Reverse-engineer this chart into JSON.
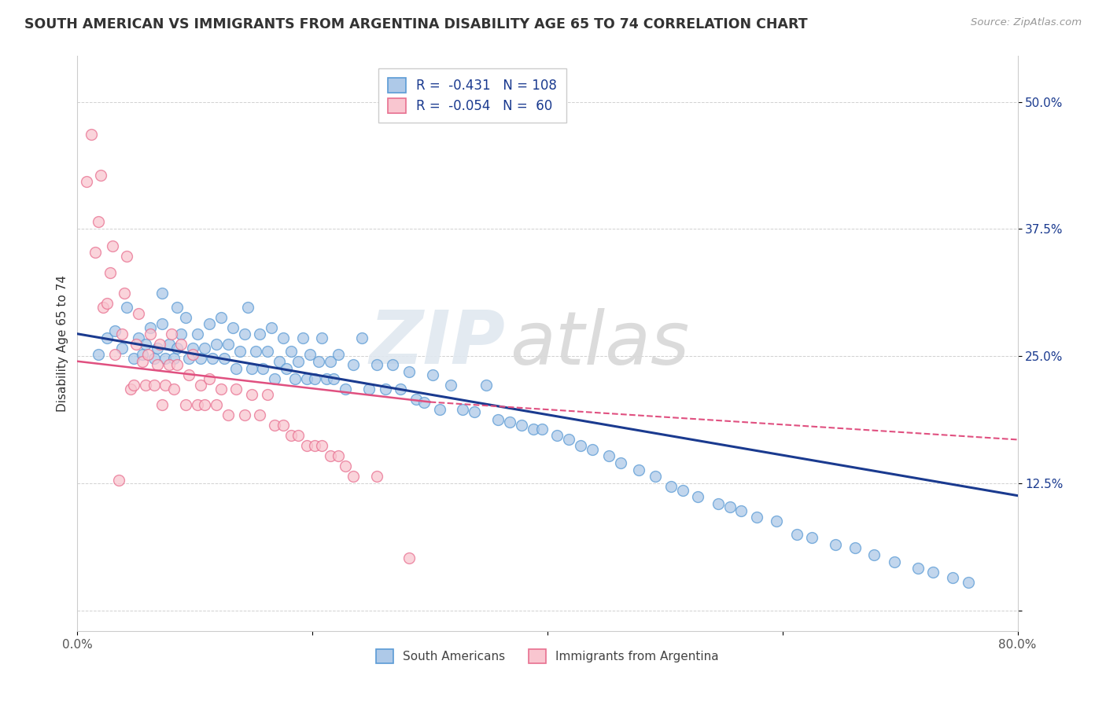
{
  "title": "SOUTH AMERICAN VS IMMIGRANTS FROM ARGENTINA DISABILITY AGE 65 TO 74 CORRELATION CHART",
  "source_text": "Source: ZipAtlas.com",
  "ylabel": "Disability Age 65 to 74",
  "xlim": [
    0.0,
    0.8
  ],
  "ylim": [
    -0.02,
    0.545
  ],
  "xticks": [
    0.0,
    0.2,
    0.4,
    0.6,
    0.8
  ],
  "yticks": [
    0.0,
    0.125,
    0.25,
    0.375,
    0.5
  ],
  "yticklabels_right": [
    "",
    "12.5%",
    "25.0%",
    "37.5%",
    "50.0%"
  ],
  "blue_face": "#aec9e8",
  "blue_edge": "#5b9bd5",
  "pink_face": "#f9c6d0",
  "pink_edge": "#e87090",
  "trend_blue": "#1a3a8f",
  "trend_pink": "#e05080",
  "blue_trend_x0": 0.0,
  "blue_trend_y0": 0.272,
  "blue_trend_x1": 0.8,
  "blue_trend_y1": 0.113,
  "pink_trend_x0": 0.0,
  "pink_trend_y0": 0.245,
  "pink_trend_x1": 0.3,
  "pink_trend_y1": 0.205,
  "pink_trend_dash_x0": 0.3,
  "pink_trend_dash_y0": 0.205,
  "pink_trend_dash_x1": 0.8,
  "pink_trend_dash_y1": 0.168,
  "blue_scatter_x": [
    0.018,
    0.025,
    0.032,
    0.038,
    0.042,
    0.048,
    0.052,
    0.055,
    0.058,
    0.062,
    0.065,
    0.068,
    0.072,
    0.075,
    0.078,
    0.082,
    0.085,
    0.088,
    0.092,
    0.095,
    0.098,
    0.102,
    0.105,
    0.108,
    0.112,
    0.115,
    0.118,
    0.122,
    0.125,
    0.128,
    0.132,
    0.135,
    0.138,
    0.142,
    0.145,
    0.148,
    0.152,
    0.155,
    0.158,
    0.162,
    0.165,
    0.168,
    0.172,
    0.175,
    0.178,
    0.182,
    0.185,
    0.188,
    0.192,
    0.195,
    0.198,
    0.202,
    0.205,
    0.208,
    0.212,
    0.215,
    0.218,
    0.222,
    0.228,
    0.235,
    0.242,
    0.248,
    0.255,
    0.262,
    0.268,
    0.275,
    0.282,
    0.288,
    0.295,
    0.302,
    0.308,
    0.318,
    0.328,
    0.338,
    0.348,
    0.358,
    0.368,
    0.378,
    0.388,
    0.395,
    0.408,
    0.418,
    0.428,
    0.438,
    0.452,
    0.462,
    0.478,
    0.492,
    0.505,
    0.515,
    0.528,
    0.545,
    0.555,
    0.565,
    0.578,
    0.595,
    0.612,
    0.625,
    0.645,
    0.662,
    0.678,
    0.695,
    0.715,
    0.728,
    0.745,
    0.758,
    0.072,
    0.085
  ],
  "blue_scatter_y": [
    0.252,
    0.268,
    0.275,
    0.258,
    0.298,
    0.248,
    0.268,
    0.252,
    0.262,
    0.278,
    0.248,
    0.258,
    0.282,
    0.248,
    0.262,
    0.248,
    0.258,
    0.272,
    0.288,
    0.248,
    0.258,
    0.272,
    0.248,
    0.258,
    0.282,
    0.248,
    0.262,
    0.288,
    0.248,
    0.262,
    0.278,
    0.238,
    0.255,
    0.272,
    0.298,
    0.238,
    0.255,
    0.272,
    0.238,
    0.255,
    0.278,
    0.228,
    0.245,
    0.268,
    0.238,
    0.255,
    0.228,
    0.245,
    0.268,
    0.228,
    0.252,
    0.228,
    0.245,
    0.268,
    0.228,
    0.245,
    0.228,
    0.252,
    0.218,
    0.242,
    0.268,
    0.218,
    0.242,
    0.218,
    0.242,
    0.218,
    0.235,
    0.208,
    0.205,
    0.232,
    0.198,
    0.222,
    0.198,
    0.195,
    0.222,
    0.188,
    0.185,
    0.182,
    0.178,
    0.178,
    0.172,
    0.168,
    0.162,
    0.158,
    0.152,
    0.145,
    0.138,
    0.132,
    0.122,
    0.118,
    0.112,
    0.105,
    0.102,
    0.098,
    0.092,
    0.088,
    0.075,
    0.072,
    0.065,
    0.062,
    0.055,
    0.048,
    0.042,
    0.038,
    0.032,
    0.028,
    0.312,
    0.298
  ],
  "pink_scatter_x": [
    0.008,
    0.012,
    0.015,
    0.018,
    0.02,
    0.022,
    0.025,
    0.028,
    0.03,
    0.032,
    0.035,
    0.038,
    0.04,
    0.042,
    0.045,
    0.048,
    0.05,
    0.052,
    0.055,
    0.058,
    0.06,
    0.062,
    0.065,
    0.068,
    0.07,
    0.072,
    0.075,
    0.078,
    0.08,
    0.082,
    0.085,
    0.088,
    0.092,
    0.095,
    0.098,
    0.102,
    0.105,
    0.108,
    0.112,
    0.118,
    0.122,
    0.128,
    0.135,
    0.142,
    0.148,
    0.155,
    0.162,
    0.168,
    0.175,
    0.182,
    0.188,
    0.195,
    0.202,
    0.208,
    0.215,
    0.222,
    0.228,
    0.235,
    0.255,
    0.282
  ],
  "pink_scatter_y": [
    0.422,
    0.468,
    0.352,
    0.382,
    0.428,
    0.298,
    0.302,
    0.332,
    0.358,
    0.252,
    0.128,
    0.272,
    0.312,
    0.348,
    0.218,
    0.222,
    0.262,
    0.292,
    0.245,
    0.222,
    0.252,
    0.272,
    0.222,
    0.242,
    0.262,
    0.202,
    0.222,
    0.242,
    0.272,
    0.218,
    0.242,
    0.262,
    0.202,
    0.232,
    0.252,
    0.202,
    0.222,
    0.202,
    0.228,
    0.202,
    0.218,
    0.192,
    0.218,
    0.192,
    0.212,
    0.192,
    0.212,
    0.182,
    0.182,
    0.172,
    0.172,
    0.162,
    0.162,
    0.162,
    0.152,
    0.152,
    0.142,
    0.132,
    0.132,
    0.052
  ]
}
